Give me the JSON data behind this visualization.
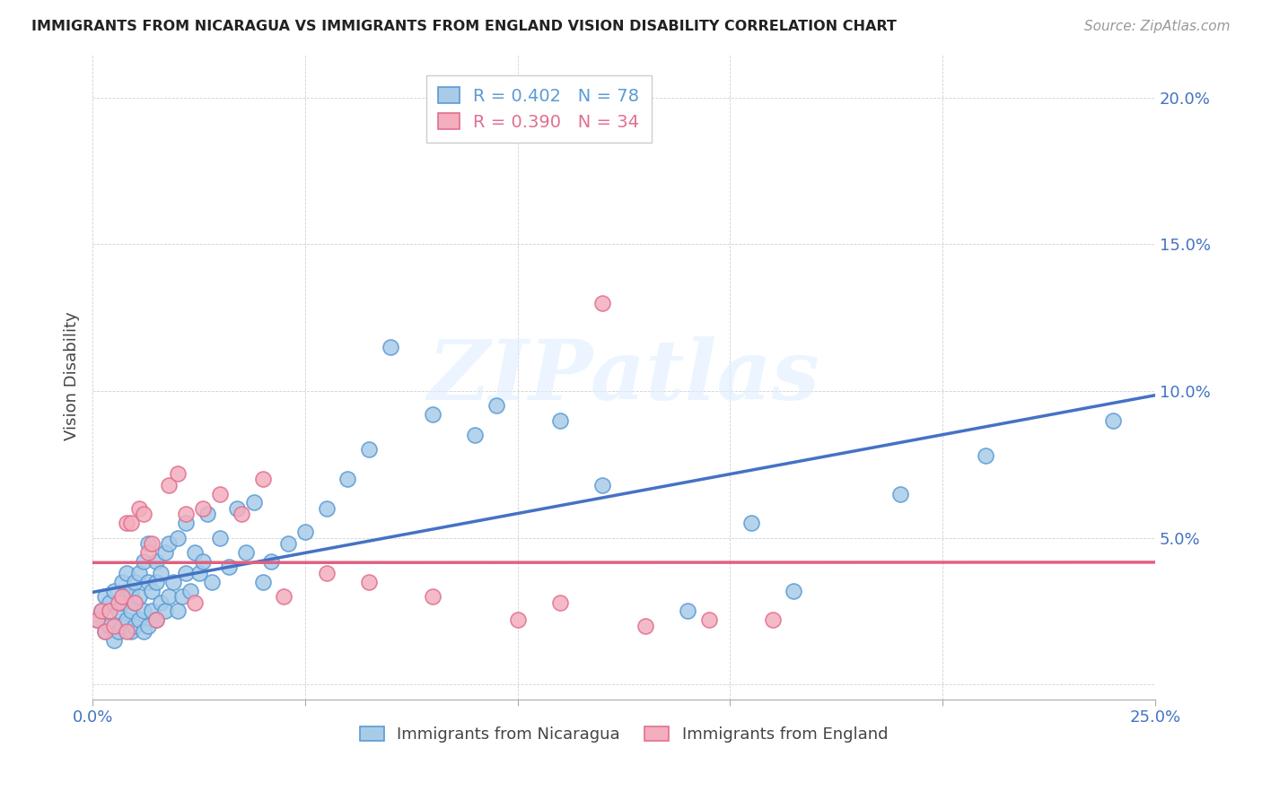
{
  "title": "IMMIGRANTS FROM NICARAGUA VS IMMIGRANTS FROM ENGLAND VISION DISABILITY CORRELATION CHART",
  "source": "Source: ZipAtlas.com",
  "ylabel": "Vision Disability",
  "xlim": [
    0.0,
    0.25
  ],
  "ylim": [
    -0.005,
    0.215
  ],
  "xticks": [
    0.0,
    0.05,
    0.1,
    0.15,
    0.2,
    0.25
  ],
  "xticklabels": [
    "0.0%",
    "",
    "",
    "",
    "",
    "25.0%"
  ],
  "yticks": [
    0.0,
    0.05,
    0.1,
    0.15,
    0.2
  ],
  "yticklabels": [
    "",
    "5.0%",
    "10.0%",
    "15.0%",
    "20.0%"
  ],
  "blue_fill": "#A8CCE8",
  "blue_edge": "#5B9BD5",
  "pink_fill": "#F4AEBE",
  "pink_edge": "#E07090",
  "blue_line": "#4472C4",
  "pink_line": "#E06080",
  "legend_blue_R": "R = 0.402",
  "legend_blue_N": "N = 78",
  "legend_pink_R": "R = 0.390",
  "legend_pink_N": "N = 34",
  "watermark": "ZIPatlas",
  "nicaragua_x": [
    0.001,
    0.002,
    0.003,
    0.003,
    0.004,
    0.004,
    0.005,
    0.005,
    0.006,
    0.006,
    0.007,
    0.007,
    0.007,
    0.008,
    0.008,
    0.008,
    0.009,
    0.009,
    0.009,
    0.01,
    0.01,
    0.01,
    0.011,
    0.011,
    0.011,
    0.012,
    0.012,
    0.012,
    0.013,
    0.013,
    0.013,
    0.014,
    0.014,
    0.015,
    0.015,
    0.015,
    0.016,
    0.016,
    0.017,
    0.017,
    0.018,
    0.018,
    0.019,
    0.02,
    0.02,
    0.021,
    0.022,
    0.022,
    0.023,
    0.024,
    0.025,
    0.026,
    0.027,
    0.028,
    0.03,
    0.032,
    0.034,
    0.036,
    0.038,
    0.04,
    0.042,
    0.046,
    0.05,
    0.055,
    0.06,
    0.065,
    0.07,
    0.08,
    0.09,
    0.095,
    0.11,
    0.12,
    0.14,
    0.155,
    0.165,
    0.19,
    0.21,
    0.24
  ],
  "nicaragua_y": [
    0.022,
    0.025,
    0.018,
    0.03,
    0.02,
    0.028,
    0.015,
    0.032,
    0.018,
    0.025,
    0.02,
    0.028,
    0.035,
    0.022,
    0.03,
    0.038,
    0.018,
    0.025,
    0.032,
    0.02,
    0.028,
    0.035,
    0.022,
    0.03,
    0.038,
    0.018,
    0.025,
    0.042,
    0.02,
    0.035,
    0.048,
    0.025,
    0.032,
    0.022,
    0.035,
    0.042,
    0.028,
    0.038,
    0.025,
    0.045,
    0.03,
    0.048,
    0.035,
    0.025,
    0.05,
    0.03,
    0.038,
    0.055,
    0.032,
    0.045,
    0.038,
    0.042,
    0.058,
    0.035,
    0.05,
    0.04,
    0.06,
    0.045,
    0.062,
    0.035,
    0.042,
    0.048,
    0.052,
    0.06,
    0.07,
    0.08,
    0.115,
    0.092,
    0.085,
    0.095,
    0.09,
    0.068,
    0.025,
    0.055,
    0.032,
    0.065,
    0.078,
    0.09
  ],
  "england_x": [
    0.001,
    0.002,
    0.003,
    0.004,
    0.005,
    0.006,
    0.007,
    0.008,
    0.008,
    0.009,
    0.01,
    0.011,
    0.012,
    0.013,
    0.014,
    0.015,
    0.018,
    0.02,
    0.022,
    0.024,
    0.026,
    0.03,
    0.035,
    0.04,
    0.045,
    0.055,
    0.065,
    0.08,
    0.1,
    0.11,
    0.12,
    0.13,
    0.145,
    0.16
  ],
  "england_y": [
    0.022,
    0.025,
    0.018,
    0.025,
    0.02,
    0.028,
    0.03,
    0.018,
    0.055,
    0.055,
    0.028,
    0.06,
    0.058,
    0.045,
    0.048,
    0.022,
    0.068,
    0.072,
    0.058,
    0.028,
    0.06,
    0.065,
    0.058,
    0.07,
    0.03,
    0.038,
    0.035,
    0.03,
    0.022,
    0.028,
    0.13,
    0.02,
    0.022,
    0.022
  ]
}
